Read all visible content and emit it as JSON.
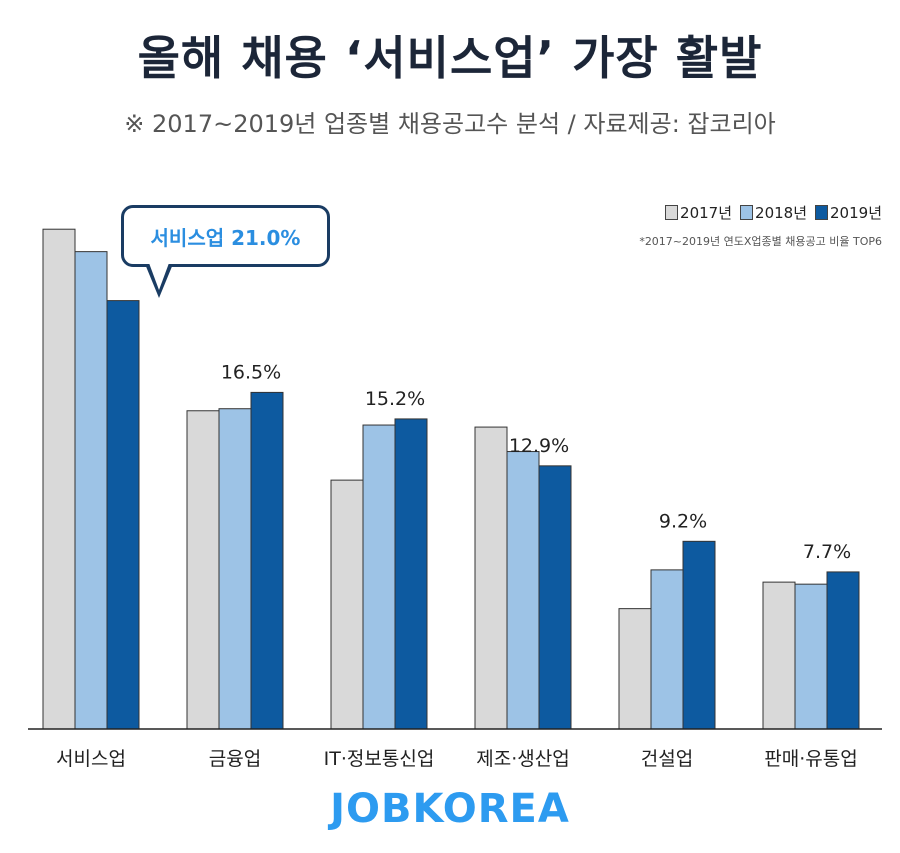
{
  "header": {
    "title": "올해 채용 ‘서비스업’ 가장 활발",
    "subtitle": "※ 2017~2019년 업종별 채용공고수 분석 / 자료제공: 잡코리아"
  },
  "note": "*2017~2019년 연도X업종별 채용공고 비율 TOP6",
  "callout": {
    "text": "서비스업 21.0%"
  },
  "logo": "JOBKOREA",
  "colors": {
    "2017": "#d9d9d9",
    "2018": "#9dc3e6",
    "2019": "#0d5aa0",
    "callout_border": "#1a3c63",
    "callout_text": "#2b8ee0",
    "logo": "#2d9bf0"
  },
  "chart_data": {
    "type": "bar",
    "categories": [
      "서비스업",
      "금융업",
      "IT·정보통신업",
      "제조·생산업",
      "건설업",
      "판매·유통업"
    ],
    "series": [
      {
        "name": "2017년",
        "values": [
          24.5,
          15.6,
          12.2,
          14.8,
          5.9,
          7.2
        ]
      },
      {
        "name": "2018년",
        "values": [
          23.4,
          15.7,
          14.9,
          13.6,
          7.8,
          7.1
        ]
      },
      {
        "name": "2019년",
        "values": [
          21.0,
          16.5,
          15.2,
          12.9,
          9.2,
          7.7
        ]
      }
    ],
    "data_labels": [
      "21.0%",
      "16.5%",
      "15.2%",
      "12.9%",
      "9.2%",
      "7.7%"
    ],
    "ylim": [
      0,
      25
    ],
    "grid": false,
    "legend_position": "top-right"
  }
}
